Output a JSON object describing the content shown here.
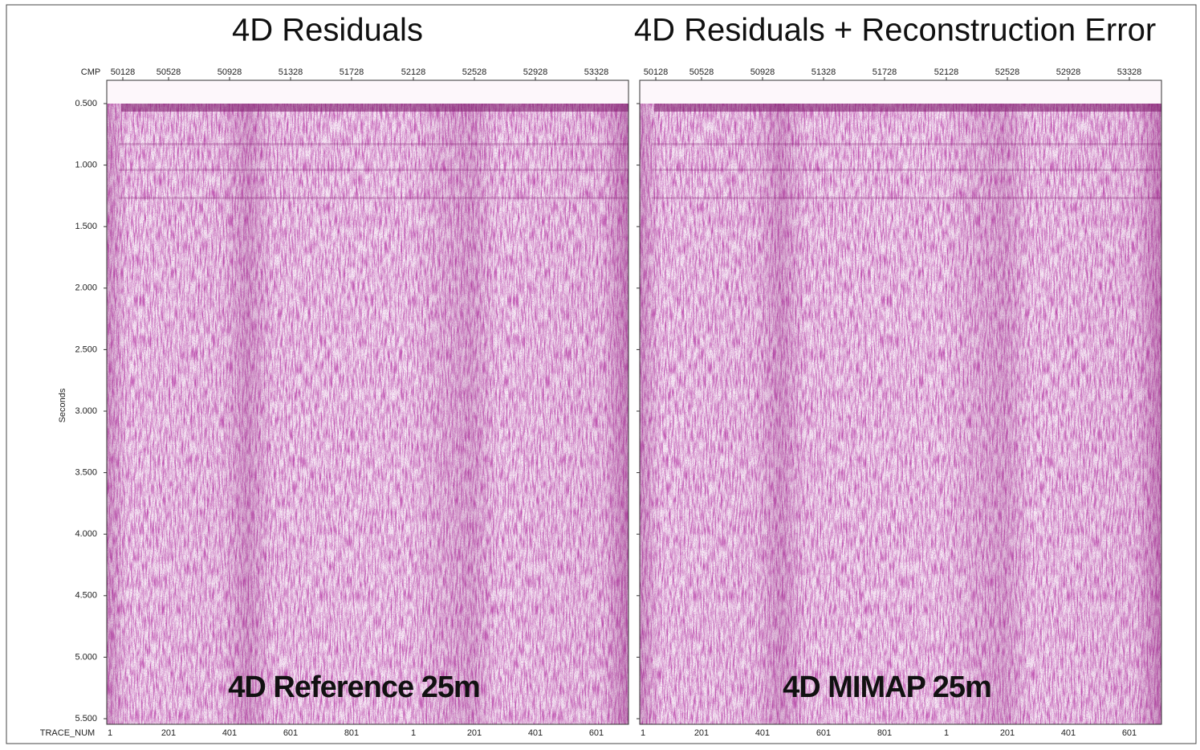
{
  "titles": [
    "4D Residuals",
    "4D Residuals + Reconstruction Error"
  ],
  "y_axis": {
    "label": "Seconds",
    "ticks": [
      "0.500",
      "1.000",
      "1.500",
      "2.000",
      "2.500",
      "3.000",
      "3.500",
      "4.000",
      "4.500",
      "5.000",
      "5.500"
    ]
  },
  "top_axis_label": "CMP",
  "bottom_axis_label": "TRACE_NUM",
  "panels": [
    {
      "cmp_ticks": [
        "50128",
        "50528",
        "50928",
        "51328",
        "51728",
        "52128",
        "52528",
        "52928",
        "53328"
      ],
      "trace_ticks": [
        "1",
        "201",
        "401",
        "601",
        "801",
        "1",
        "201",
        "401",
        "601"
      ],
      "caption": "4D Reference 25m"
    },
    {
      "cmp_ticks": [
        "50128",
        "50528",
        "50928",
        "51328",
        "51728",
        "52128",
        "52528",
        "52928",
        "53328"
      ],
      "trace_ticks": [
        "1",
        "201",
        "401",
        "601",
        "801",
        "1",
        "201",
        "401",
        "601"
      ],
      "caption": "4D MIMAP 25m"
    }
  ]
}
